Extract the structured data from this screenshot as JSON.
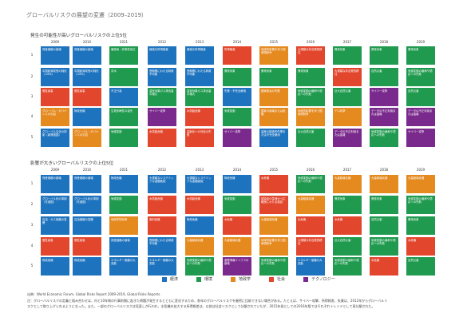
{
  "page_title": "グローバルリスクの展望の変遷（2009–2019）",
  "colors": {
    "経済": "#1e73be",
    "環境": "#1f9a4e",
    "地政学": "#e58a1f",
    "社会": "#e2462c",
    "テクノロジー": "#7a2a8c"
  },
  "legend": [
    {
      "label": "経済",
      "category": "経済"
    },
    {
      "label": "環境",
      "category": "環境"
    },
    {
      "label": "地政学",
      "category": "地政学"
    },
    {
      "label": "社会",
      "category": "社会"
    },
    {
      "label": "テクノロジー",
      "category": "テクノロジー"
    }
  ],
  "footnote_source": "出典：World Economic Forum, Global Risks Report 2009-2019, Global Risks Reports.",
  "footnote_note_1": "注：グローバルリスクの定義と組み合わせは、内と10年物の行事前間に起きた問題が発生するとともに変化するため、各年のグローバルリスクを厳密に比較できない場合がある。たとえば、サイバー攻撃、所得格差、失業は、2012年からグローバルリ",
  "footnote_note_2": "スクとして取り上げられるようになった。また、一部のグローバルリスクは見直しが行われ、水危機を拡大する所得格差は、以前は社会リスクとして分類されていたが、2015年発としての2016年版ではそれぞれトレンドとして再分類された。",
  "chart_data": [
    {
      "type": "table",
      "title": "発生の可能性が高いグローバルリスクの上位5位",
      "years": [
        "2009",
        "2010",
        "2011",
        "2012",
        "2013",
        "2014",
        "2015",
        "2016",
        "2017",
        "2018",
        "2019"
      ],
      "ranks": [
        "1",
        "2",
        "3",
        "4",
        "5"
      ],
      "cells": [
        [
          {
            "t": "資産価格の崩壊",
            "c": "経済"
          },
          {
            "t": "資産価格の崩壊",
            "c": "経済"
          },
          {
            "t": "暴風雨・熱帯低気圧",
            "c": "環境"
          },
          {
            "t": "極端な所得格差",
            "c": "経済"
          },
          {
            "t": "極端な所得格差",
            "c": "経済"
          },
          {
            "t": "所得格差",
            "c": "社会"
          },
          {
            "t": "地域的影響を伴う国家間紛争",
            "c": "地政学"
          },
          {
            "t": "大規模な非自発的移住",
            "c": "社会"
          },
          {
            "t": "異常気象",
            "c": "環境"
          },
          {
            "t": "異常気象",
            "c": "環境"
          },
          {
            "t": "異常気象",
            "c": "環境"
          }
        ],
        [
          {
            "t": "中国経済成長の鈍化（<6%）",
            "c": "経済"
          },
          {
            "t": "中国経済成長の鈍化（<6%）",
            "c": "経済"
          },
          {
            "t": "洪水",
            "c": "環境"
          },
          {
            "t": "長期間にわたる財政不均衡",
            "c": "経済"
          },
          {
            "t": "長期間にわたる財政不均衡",
            "c": "経済"
          },
          {
            "t": "異常気象",
            "c": "環境"
          },
          {
            "t": "異常気象",
            "c": "環境"
          },
          {
            "t": "異常気象",
            "c": "環境"
          },
          {
            "t": "大規模な非自発的移住",
            "c": "社会"
          },
          {
            "t": "自然災害",
            "c": "環境"
          },
          {
            "t": "気候変動の緩和や適応への失敗",
            "c": "環境"
          }
        ],
        [
          {
            "t": "慢性疾患",
            "c": "社会"
          },
          {
            "t": "慢性疾患",
            "c": "社会"
          },
          {
            "t": "不正行為",
            "c": "経済"
          },
          {
            "t": "温室効果ガス排出量の増大",
            "c": "環境"
          },
          {
            "t": "温室効果ガス排出量の増大",
            "c": "環境"
          },
          {
            "t": "失業・不完全雇用",
            "c": "経済"
          },
          {
            "t": "国家統治の失敗",
            "c": "地政学"
          },
          {
            "t": "気候変動の緩和や適応への失敗",
            "c": "環境"
          },
          {
            "t": "巨大自然災害",
            "c": "環境"
          },
          {
            "t": "サイバー攻撃",
            "c": "テクノロジー"
          },
          {
            "t": "自然災害",
            "c": "環境"
          }
        ],
        [
          {
            "t": "グローバル・ガバナンスの欠如",
            "c": "地政学"
          },
          {
            "t": "財政危機",
            "c": "経済"
          },
          {
            "t": "生物多様性の喪失",
            "c": "環境"
          },
          {
            "t": "サイバー攻撃",
            "c": "テクノロジー"
          },
          {
            "t": "水供給危機",
            "c": "社会"
          },
          {
            "t": "気候変動",
            "c": "環境"
          },
          {
            "t": "国家の崩壊または危機",
            "c": "地政学"
          },
          {
            "t": "地域的影響を伴う国家間紛争",
            "c": "地政学"
          },
          {
            "t": "テロ攻撃",
            "c": "地政学"
          },
          {
            "t": "データの不正利用または盗難",
            "c": "テクノロジー"
          },
          {
            "t": "データの不正利用または盗難",
            "c": "テクノロジー"
          }
        ],
        [
          {
            "t": "グローバルな化の抑制（新興国国）",
            "c": "経済"
          },
          {
            "t": "グローバル・ガバナンスの欠如",
            "c": "地政学"
          },
          {
            "t": "気候変動",
            "c": "環境"
          },
          {
            "t": "水供給危機",
            "c": "社会"
          },
          {
            "t": "高齢化への対処の失敗",
            "c": "社会"
          },
          {
            "t": "サイバー攻撃",
            "c": "テクノロジー"
          },
          {
            "t": "高度の構造的失業または不完全雇用",
            "c": "経済"
          },
          {
            "t": "巨大自然災害",
            "c": "環境"
          },
          {
            "t": "データの不正利用または盗難",
            "c": "テクノロジー"
          },
          {
            "t": "気候変動の緩和や適応への失敗",
            "c": "環境"
          },
          {
            "t": "サイバー攻撃",
            "c": "テクノロジー"
          }
        ]
      ]
    },
    {
      "type": "table",
      "title": "影響が大きいグローバルリスクの上位5位",
      "years": [
        "2009",
        "2010",
        "2011",
        "2012",
        "2013",
        "2014",
        "2015",
        "2016",
        "2017",
        "2018",
        "2019"
      ],
      "ranks": [
        "1",
        "2",
        "3",
        "4",
        "5"
      ],
      "cells": [
        [
          {
            "t": "資産価格の崩壊",
            "c": "経済"
          },
          {
            "t": "資産価格の崩壊",
            "c": "経済"
          },
          {
            "t": "財政危機",
            "c": "経済"
          },
          {
            "t": "大規模なシステミックな金融破綻",
            "c": "経済"
          },
          {
            "t": "大規模なシステミックな金融破綻",
            "c": "経済"
          },
          {
            "t": "財政危機",
            "c": "経済"
          },
          {
            "t": "水危機",
            "c": "社会"
          },
          {
            "t": "気候変動の緩和や適応への失敗",
            "c": "環境"
          },
          {
            "t": "大量破壊兵器",
            "c": "地政学"
          },
          {
            "t": "大量破壊兵器",
            "c": "地政学"
          },
          {
            "t": "大量破壊兵器",
            "c": "地政学"
          }
        ],
        [
          {
            "t": "グローバル化の抑制（先進国）",
            "c": "経済"
          },
          {
            "t": "グローバル化の抑制（先進国）",
            "c": "経済"
          },
          {
            "t": "気候変動",
            "c": "環境"
          },
          {
            "t": "水供給危機",
            "c": "社会"
          },
          {
            "t": "水供給危機",
            "c": "社会"
          },
          {
            "t": "気候変動",
            "c": "環境"
          },
          {
            "t": "感染症の急速かつ広範囲にわたる蔓延",
            "c": "社会"
          },
          {
            "t": "大量破壊兵器",
            "c": "地政学"
          },
          {
            "t": "異常気象",
            "c": "環境"
          },
          {
            "t": "異常気象",
            "c": "環境"
          },
          {
            "t": "気候変動の緩和や適応への失敗",
            "c": "環境"
          }
        ],
        [
          {
            "t": "石油・ガス価格の急騰",
            "c": "経済"
          },
          {
            "t": "石油価格の急騰",
            "c": "経済"
          },
          {
            "t": "地政学的紛争",
            "c": "地政学"
          },
          {
            "t": "食料危機",
            "c": "社会"
          },
          {
            "t": "財政危機",
            "c": "経済"
          },
          {
            "t": "水危機",
            "c": "社会"
          },
          {
            "t": "大量破壊兵器",
            "c": "地政学"
          },
          {
            "t": "水危機",
            "c": "社会"
          },
          {
            "t": "水危機",
            "c": "社会"
          },
          {
            "t": "自然災害",
            "c": "環境"
          },
          {
            "t": "異常気象",
            "c": "環境"
          }
        ],
        [
          {
            "t": "慢性疾患",
            "c": "社会"
          },
          {
            "t": "慢性疾患",
            "c": "社会"
          },
          {
            "t": "資産価格の崩壊",
            "c": "経済"
          },
          {
            "t": "長期間にわたる財政不均衡",
            "c": "経済"
          },
          {
            "t": "大量破壊兵器",
            "c": "地政学"
          },
          {
            "t": "大量破壊兵器",
            "c": "地政学"
          },
          {
            "t": "地域的影響を伴う国家間紛争",
            "c": "地政学"
          },
          {
            "t": "大規模な非自発的移住",
            "c": "社会"
          },
          {
            "t": "巨大自然災害",
            "c": "環境"
          },
          {
            "t": "気候変動の緩和や適応への失敗",
            "c": "環境"
          },
          {
            "t": "水危機",
            "c": "社会"
          }
        ],
        [
          {
            "t": "財政危機",
            "c": "経済"
          },
          {
            "t": "財政危機",
            "c": "経済"
          },
          {
            "t": "エネルギー価格の大変動",
            "c": "経済"
          },
          {
            "t": "エネルギー価格の大変動",
            "c": "経済"
          },
          {
            "t": "気候変動の緩和や適応への失敗",
            "c": "環境"
          },
          {
            "t": "重要情報インフラの崩壊",
            "c": "テクノロジー"
          },
          {
            "t": "気候変動の緩和や適応への失敗",
            "c": "環境"
          },
          {
            "t": "エネルギー価格の大変動",
            "c": "経済"
          },
          {
            "t": "気候変動の緩和や適応への失敗",
            "c": "環境"
          },
          {
            "t": "水危機",
            "c": "社会"
          },
          {
            "t": "自然災害",
            "c": "環境"
          }
        ]
      ]
    }
  ]
}
